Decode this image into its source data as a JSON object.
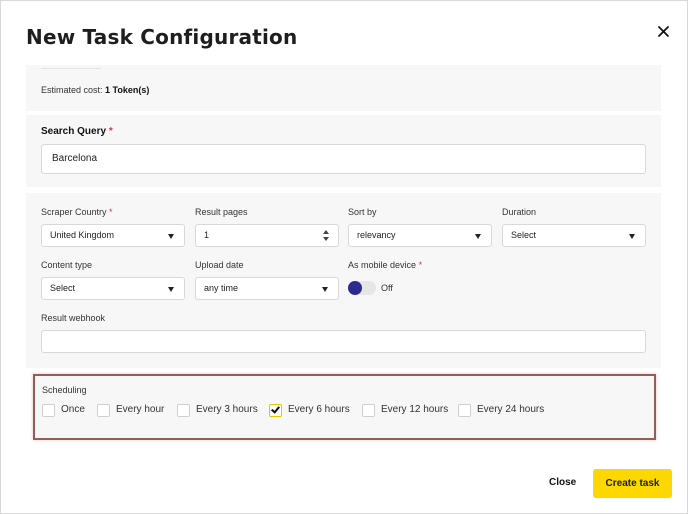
{
  "dialog": {
    "title": "New Task Configuration",
    "close_icon": "close-icon"
  },
  "cost": {
    "label": "Estimated cost:",
    "value": "1 Token(s)"
  },
  "query": {
    "label": "Search Query",
    "required_mark": "*",
    "value": "Barcelona"
  },
  "form": {
    "scraper_country": {
      "label": "Scraper Country",
      "required_mark": "*",
      "value": "United Kingdom"
    },
    "result_pages": {
      "label": "Result pages",
      "value": "1"
    },
    "sort_by": {
      "label": "Sort by",
      "value": "relevancy"
    },
    "duration": {
      "label": "Duration",
      "value": "Select"
    },
    "content_type": {
      "label": "Content type",
      "value": "Select"
    },
    "upload_date": {
      "label": "Upload date",
      "value": "any time"
    },
    "mobile_device": {
      "label": "As mobile device",
      "required_mark": "*",
      "state_text": "Off",
      "on": false
    },
    "result_webhook": {
      "label": "Result webhook",
      "value": ""
    }
  },
  "scheduling": {
    "label": "Scheduling",
    "options": [
      {
        "label": "Once",
        "checked": false
      },
      {
        "label": "Every hour",
        "checked": false
      },
      {
        "label": "Every 3 hours",
        "checked": false
      },
      {
        "label": "Every 6 hours",
        "checked": true
      },
      {
        "label": "Every 12 hours",
        "checked": false
      },
      {
        "label": "Every 24 hours",
        "checked": false
      }
    ]
  },
  "footer": {
    "close_label": "Close",
    "create_label": "Create task"
  },
  "colors": {
    "accent": "#fcd800",
    "toggle_knob": "#2e2b8f",
    "required": "#d63a3a",
    "highlight_border": "#9b5a55"
  }
}
